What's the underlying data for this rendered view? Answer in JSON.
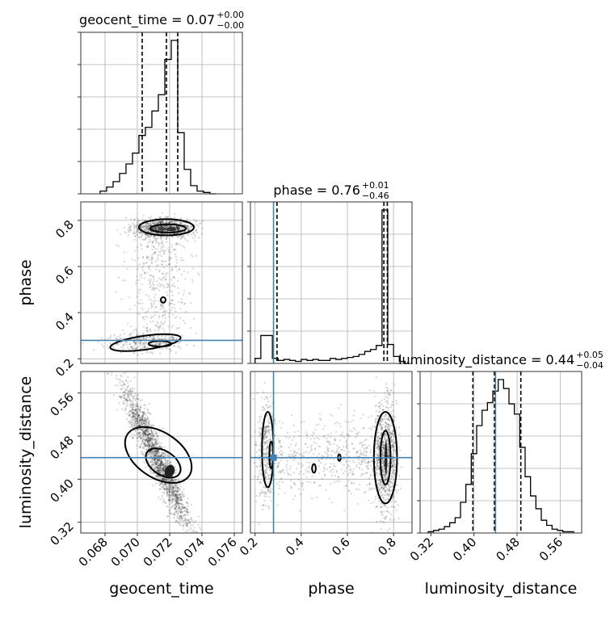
{
  "chart_data": {
    "type": "corner",
    "parameters": [
      "geocent_time",
      "phase",
      "luminosity_distance"
    ],
    "titles": {
      "geocent_time": {
        "name": "geocent_time",
        "median": "0.07",
        "plus": "+0.00",
        "minus": "−0.00"
      },
      "phase": {
        "name": "phase",
        "median": "0.76",
        "plus": "+0.01",
        "minus": "−0.46"
      },
      "luminosity_distance": {
        "name": "luminosity_distance",
        "median": "0.44",
        "plus": "+0.05",
        "minus": "−0.04"
      }
    },
    "axis_labels": {
      "geocent_time": "geocent_time",
      "phase": "phase",
      "luminosity_distance": "luminosity_distance"
    },
    "ranges": {
      "geocent_time": [
        0.0665,
        0.0765
      ],
      "phase": [
        0.18,
        0.88
      ],
      "luminosity_distance": [
        0.3,
        0.6
      ]
    },
    "ticks": {
      "geocent_time": {
        "values": [
          0.068,
          0.07,
          0.072,
          0.074,
          0.076
        ],
        "labels": [
          "0.068",
          "0.070",
          "0.072",
          "0.074",
          "0.076"
        ]
      },
      "phase": {
        "values": [
          0.2,
          0.4,
          0.6,
          0.8
        ],
        "labels": [
          "0.2",
          "0.4",
          "0.6",
          "0.8"
        ]
      },
      "luminosity_distance": {
        "values": [
          0.32,
          0.4,
          0.48,
          0.56
        ],
        "labels": [
          "0.32",
          "0.40",
          "0.48",
          "0.56"
        ]
      }
    },
    "injection": {
      "phase": 0.28,
      "luminosity_distance": 0.44
    },
    "quantiles": {
      "geocent_time": [
        0.0703,
        0.0718,
        0.0725
      ],
      "phase": [
        0.295,
        0.758,
        0.773
      ],
      "luminosity_distance": [
        0.398,
        0.438,
        0.487
      ]
    },
    "histograms": {
      "geocent_time": {
        "edges": [
          0.0677,
          0.0681,
          0.0685,
          0.0689,
          0.0693,
          0.0697,
          0.0701,
          0.0705,
          0.0709,
          0.0713,
          0.0717,
          0.0721,
          0.0725,
          0.0729,
          0.0733,
          0.0737,
          0.0741,
          0.0745,
          0.0749
        ],
        "counts": [
          2,
          5,
          9,
          15,
          22,
          30,
          43,
          49,
          61,
          73,
          99,
          113,
          45,
          18,
          6,
          2,
          1,
          0
        ]
      },
      "phase": {
        "edges": [
          0.2,
          0.225,
          0.25,
          0.275,
          0.3,
          0.325,
          0.35,
          0.375,
          0.4,
          0.425,
          0.45,
          0.475,
          0.5,
          0.525,
          0.55,
          0.575,
          0.6,
          0.625,
          0.65,
          0.675,
          0.7,
          0.725,
          0.75,
          0.775,
          0.8,
          0.825,
          0.85
        ],
        "counts": [
          5,
          28,
          28,
          5,
          3,
          4,
          3,
          2,
          4,
          3,
          4,
          3,
          3,
          5,
          4,
          5,
          6,
          7,
          9,
          12,
          14,
          18,
          154,
          19,
          7,
          2
        ]
      },
      "luminosity_distance": {
        "edges": [
          0.315,
          0.325,
          0.335,
          0.345,
          0.355,
          0.365,
          0.375,
          0.385,
          0.395,
          0.405,
          0.415,
          0.425,
          0.435,
          0.445,
          0.455,
          0.465,
          0.475,
          0.485,
          0.495,
          0.505,
          0.515,
          0.525,
          0.535,
          0.545,
          0.555,
          0.565,
          0.575,
          0.585
        ],
        "counts": [
          1,
          2,
          3,
          5,
          8,
          12,
          24,
          38,
          62,
          84,
          96,
          102,
          111,
          120,
          113,
          101,
          93,
          67,
          44,
          29,
          19,
          10,
          6,
          3,
          2,
          1,
          1
        ]
      }
    },
    "grid": true
  }
}
